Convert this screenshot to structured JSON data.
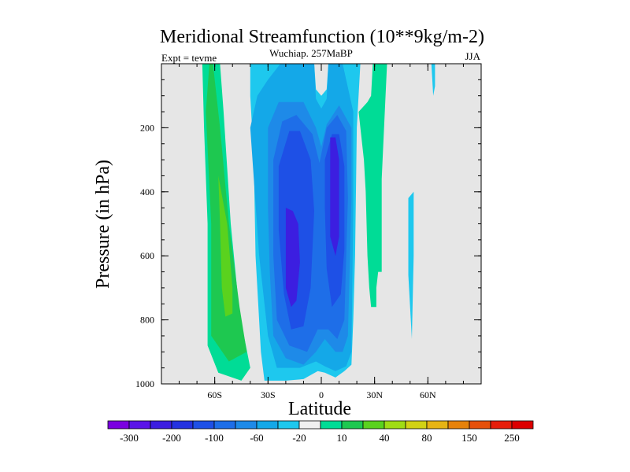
{
  "chart_data": {
    "type": "heatmap",
    "title": "Meridional Streamfunction (10**9kg/m-2)",
    "subtitle": "Wuchiap. 257MaBP",
    "left_label": "Expt = tevme",
    "right_label": "JJA",
    "xlabel": "Latitude",
    "ylabel": "Pressure (in hPa)",
    "xlim": [
      -90,
      90
    ],
    "ylim": [
      0,
      1000
    ],
    "y_inverted": true,
    "xticks": [
      {
        "value": -60,
        "label": "60S"
      },
      {
        "value": -30,
        "label": "30S"
      },
      {
        "value": 0,
        "label": "0"
      },
      {
        "value": 30,
        "label": "30N"
      },
      {
        "value": 60,
        "label": "60N"
      }
    ],
    "yticks": [
      {
        "value": 200,
        "label": "200"
      },
      {
        "value": 400,
        "label": "400"
      },
      {
        "value": 600,
        "label": "600"
      },
      {
        "value": 800,
        "label": "800"
      },
      {
        "value": 1000,
        "label": "1000"
      }
    ],
    "background_color": "#e6e6e6",
    "colorbar": {
      "colors": [
        "#7a00e0",
        "#5a14e8",
        "#3c1ee0",
        "#2432e0",
        "#1e50e6",
        "#1e6ee8",
        "#1e8ae8",
        "#14a8e8",
        "#1ec8ee",
        "#f0f0f0",
        "#00dc96",
        "#1ec850",
        "#5ad21e",
        "#a0dc14",
        "#d2d214",
        "#e6b414",
        "#e6820a",
        "#e6500a",
        "#e61e0a",
        "#dc0000"
      ],
      "labels": [
        {
          "after_box": 1,
          "text": "-300"
        },
        {
          "after_box": 3,
          "text": "-200"
        },
        {
          "after_box": 5,
          "text": "-100"
        },
        {
          "after_box": 7,
          "text": "-60"
        },
        {
          "after_box": 9,
          "text": "-20"
        },
        {
          "after_box": 11,
          "text": "10"
        },
        {
          "after_box": 13,
          "text": "40"
        },
        {
          "after_box": 15,
          "text": "80"
        },
        {
          "after_box": 17,
          "text": "150"
        },
        {
          "after_box": 19,
          "text": "250"
        }
      ]
    },
    "contour_regions": [
      {
        "name": "sh-cell-outer",
        "level": "10",
        "color": "#00dc96",
        "points": [
          [
            -67,
            0
          ],
          [
            -57,
            0
          ],
          [
            -55,
            150
          ],
          [
            -51,
            500
          ],
          [
            -46,
            780
          ],
          [
            -40,
            950
          ],
          [
            -45,
            990
          ],
          [
            -58,
            965
          ],
          [
            -64,
            880
          ],
          [
            -64,
            500
          ],
          [
            -66,
            200
          ]
        ]
      },
      {
        "name": "sh-cell-mid",
        "level": "40",
        "color": "#1ec850",
        "points": [
          [
            -63,
            0
          ],
          [
            -61,
            0
          ],
          [
            -57,
            200
          ],
          [
            -52,
            500
          ],
          [
            -46,
            760
          ],
          [
            -42,
            900
          ],
          [
            -52,
            930
          ],
          [
            -62,
            850
          ],
          [
            -62,
            500
          ],
          [
            -65,
            150
          ]
        ]
      },
      {
        "name": "sh-cell-core",
        "level": "80",
        "color": "#5ad21e",
        "points": [
          [
            -58,
            350
          ],
          [
            -53,
            500
          ],
          [
            -50,
            700
          ],
          [
            -50,
            780
          ],
          [
            -54,
            790
          ],
          [
            -56,
            700
          ],
          [
            -57,
            500
          ]
        ]
      },
      {
        "name": "central-outer",
        "level": "-20",
        "color": "#1ec8ee",
        "points": [
          [
            -40,
            0
          ],
          [
            -4,
            0
          ],
          [
            -3,
            80
          ],
          [
            0,
            100
          ],
          [
            3,
            80
          ],
          [
            4,
            0
          ],
          [
            22,
            0
          ],
          [
            20,
            200
          ],
          [
            19,
            600
          ],
          [
            18,
            800
          ],
          [
            17,
            940
          ],
          [
            13,
            960
          ],
          [
            8,
            980
          ],
          [
            2,
            965
          ],
          [
            -2,
            960
          ],
          [
            -10,
            985
          ],
          [
            -20,
            990
          ],
          [
            -32,
            990
          ],
          [
            -34,
            900
          ],
          [
            -37,
            600
          ],
          [
            -38,
            300
          ],
          [
            -40,
            100
          ]
        ]
      },
      {
        "name": "central-l2",
        "level": "-60",
        "color": "#14a8e8",
        "points": [
          [
            -40,
            200
          ],
          [
            -36,
            100
          ],
          [
            -30,
            50
          ],
          [
            -23,
            0
          ],
          [
            -4,
            0
          ],
          [
            -3,
            110
          ],
          [
            0,
            140
          ],
          [
            3,
            110
          ],
          [
            4,
            0
          ],
          [
            12,
            0
          ],
          [
            18,
            150
          ],
          [
            18,
            450
          ],
          [
            17,
            900
          ],
          [
            14,
            945
          ],
          [
            8,
            960
          ],
          [
            2,
            945
          ],
          [
            -3,
            930
          ],
          [
            -12,
            950
          ],
          [
            -25,
            950
          ],
          [
            -30,
            850
          ],
          [
            -35,
            600
          ]
        ]
      },
      {
        "name": "central-l3",
        "level": "-100",
        "color": "#1e8ae8",
        "points": [
          [
            -30,
            200
          ],
          [
            -24,
            120
          ],
          [
            -10,
            120
          ],
          [
            -3,
            200
          ],
          [
            0,
            260
          ],
          [
            3,
            190
          ],
          [
            10,
            130
          ],
          [
            17,
            200
          ],
          [
            17,
            420
          ],
          [
            15,
            850
          ],
          [
            12,
            900
          ],
          [
            8,
            900
          ],
          [
            2,
            860
          ],
          [
            -3,
            900
          ],
          [
            -10,
            940
          ],
          [
            -20,
            920
          ],
          [
            -27,
            850
          ],
          [
            -29,
            650
          ],
          [
            -30,
            450
          ]
        ]
      },
      {
        "name": "central-l4",
        "level": "-200",
        "color": "#1e6ee8",
        "points": [
          [
            -27,
            300
          ],
          [
            -22,
            180
          ],
          [
            -14,
            160
          ],
          [
            -5,
            220
          ],
          [
            -1,
            310
          ],
          [
            3,
            200
          ],
          [
            9,
            160
          ],
          [
            14,
            210
          ],
          [
            15,
            420
          ],
          [
            13,
            800
          ],
          [
            9,
            860
          ],
          [
            4,
            830
          ],
          [
            -2,
            830
          ],
          [
            -8,
            900
          ],
          [
            -18,
            880
          ],
          [
            -25,
            800
          ],
          [
            -27,
            600
          ]
        ]
      },
      {
        "name": "central-l5",
        "level": "-300",
        "color": "#1e50e6",
        "points": [
          [
            -24,
            320
          ],
          [
            -18,
            210
          ],
          [
            -12,
            210
          ],
          [
            -6,
            300
          ],
          [
            -4,
            460
          ],
          [
            -6,
            700
          ],
          [
            -10,
            820
          ],
          [
            -17,
            830
          ],
          [
            -21,
            720
          ],
          [
            -24,
            520
          ]
        ]
      },
      {
        "name": "central-l5b",
        "level": "-300",
        "color": "#1e50e6",
        "points": [
          [
            2,
            300
          ],
          [
            6,
            220
          ],
          [
            10,
            220
          ],
          [
            13,
            320
          ],
          [
            13,
            580
          ],
          [
            11,
            720
          ],
          [
            6,
            760
          ],
          [
            3,
            640
          ],
          [
            2,
            450
          ]
        ]
      },
      {
        "name": "central-l6",
        "level": "-400",
        "color": "#3c1ee0",
        "points": [
          [
            -20,
            450
          ],
          [
            -16,
            460
          ],
          [
            -13,
            500
          ],
          [
            -12,
            620
          ],
          [
            -14,
            740
          ],
          [
            -17,
            760
          ],
          [
            -20,
            700
          ]
        ]
      },
      {
        "name": "central-l6b",
        "level": "-400",
        "color": "#3c1ee0",
        "points": [
          [
            5,
            230
          ],
          [
            8,
            230
          ],
          [
            10,
            300
          ],
          [
            10,
            540
          ],
          [
            8,
            600
          ],
          [
            5,
            540
          ]
        ]
      },
      {
        "name": "nh-cell",
        "level": "10",
        "color": "#00dc96",
        "points": [
          [
            21,
            150
          ],
          [
            26,
            120
          ],
          [
            28,
            100
          ],
          [
            29,
            0
          ],
          [
            37,
            0
          ],
          [
            36,
            120
          ],
          [
            34,
            360
          ],
          [
            34,
            650
          ],
          [
            32,
            650
          ],
          [
            31,
            700
          ],
          [
            31,
            760
          ],
          [
            28,
            760
          ],
          [
            27,
            700
          ],
          [
            26,
            600
          ],
          [
            25,
            400
          ],
          [
            24,
            300
          ]
        ]
      },
      {
        "name": "nh-small-cell",
        "level": "-20",
        "color": "#1ec8ee",
        "points": [
          [
            49,
            420
          ],
          [
            52,
            400
          ],
          [
            52,
            600
          ],
          [
            51,
            860
          ],
          [
            49,
            660
          ]
        ]
      },
      {
        "name": "nh-small-cell-top",
        "level": "-20",
        "color": "#1ec8ee",
        "points": [
          [
            62,
            0
          ],
          [
            64,
            0
          ],
          [
            64,
            70
          ],
          [
            63,
            100
          ]
        ]
      }
    ]
  }
}
